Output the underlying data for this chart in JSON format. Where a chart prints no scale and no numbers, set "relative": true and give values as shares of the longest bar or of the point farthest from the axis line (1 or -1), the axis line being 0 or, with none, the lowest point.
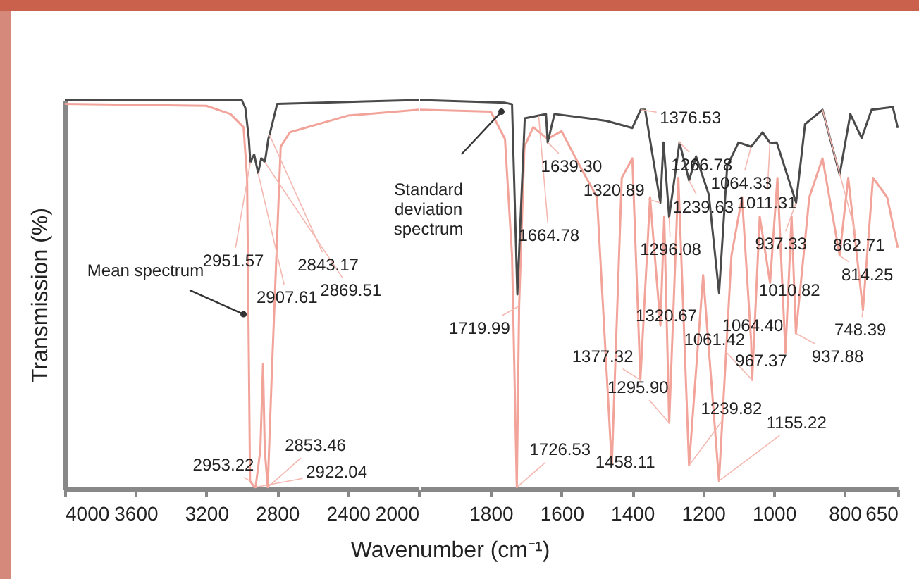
{
  "chart_data": [
    {
      "type": "line",
      "relative": true,
      "ylabel": "Transmission (%)",
      "xlim": [
        4000,
        2000
      ],
      "xticks": [
        4000,
        3600,
        3200,
        2800,
        2400,
        2000
      ],
      "grid": false,
      "marker": "none",
      "line_style": "solid",
      "series": [
        {
          "name": "Mean spectrum",
          "color": "#f2a49a",
          "x": [
            4000,
            3200,
            3064,
            2990,
            2970,
            2953.22,
            2930,
            2922.04,
            2895,
            2880,
            2870,
            2853.46,
            2830,
            2780,
            2728,
            2400,
            2000
          ],
          "values": [
            0.99,
            0.985,
            0.964,
            0.93,
            0.8,
            0.02,
            0.005,
            0.004,
            0.1,
            0.32,
            0.1,
            0.004,
            0.3,
            0.88,
            0.917,
            0.96,
            0.975
          ]
        },
        {
          "color": "#4a4a4a",
          "x": [
            4000,
            3000,
            2980,
            2960,
            2951.57,
            2930,
            2907.61,
            2890,
            2869.51,
            2850,
            2843.17,
            2800,
            2000
          ],
          "values": [
            1,
            1,
            0.98,
            0.9,
            0.84,
            0.86,
            0.812,
            0.85,
            0.84,
            0.9,
            0.91,
            0.99,
            1
          ]
        }
      ],
      "annotations": [
        {
          "text": "2951.57",
          "x": 2951.57,
          "y": 0.84
        },
        {
          "text": "2843.17",
          "x": 2843.17,
          "y": 0.91
        },
        {
          "text": "2907.61",
          "x": 2907.61,
          "y": 0.812
        },
        {
          "text": "2869.51",
          "x": 2869.51,
          "y": 0.84
        },
        {
          "text": "2953.22",
          "x": 2953.22,
          "y": 0.02
        },
        {
          "text": "2853.46",
          "x": 2853.46,
          "y": 0.004
        },
        {
          "text": "2922.04",
          "x": 2922.04,
          "y": 0.004
        }
      ]
    },
    {
      "type": "line",
      "relative": true,
      "xlabel": "Wavenumber (cm⁻¹)",
      "xlim": [
        2000,
        650
      ],
      "xticks": [
        1800,
        1600,
        1400,
        1200,
        1000,
        800,
        650
      ],
      "grid": false,
      "marker": "none",
      "line_style": "solid",
      "tick_labels": "x",
      "series": [
        {
          "color": "#f2a49a",
          "x": [
            2000,
            1800,
            1760,
            1740,
            1726.53,
            1719.99,
            1705,
            1680,
            1640,
            1600,
            1560,
            1500,
            1458.11,
            1430,
            1400,
            1377.32,
            1350,
            1320.67,
            1310,
            1295.9,
            1270,
            1239.82,
            1200,
            1155.22,
            1120,
            1090,
            1064.4,
            1061.42,
            1040,
            1010.82,
            990,
            967.37,
            950,
            937.88,
            900,
            862.71,
            814.25,
            790,
            748.39,
            720,
            680,
            650
          ],
          "values": [
            0.975,
            0.97,
            0.9,
            0.6,
            0.004,
            0.47,
            0.88,
            0.93,
            0.9,
            0.92,
            0.85,
            0.75,
            0.06,
            0.8,
            0.85,
            0.28,
            0.75,
            0.42,
            0.7,
            0.17,
            0.8,
            0.06,
            0.55,
            0.02,
            0.6,
            0.75,
            0.38,
            0.28,
            0.7,
            0.53,
            0.8,
            0.35,
            0.7,
            0.4,
            0.75,
            0.85,
            0.6,
            0.8,
            0.46,
            0.8,
            0.75,
            0.62
          ]
        },
        {
          "name": "Standard deviation spectrum",
          "color": "#4a4a4a",
          "x": [
            2000,
            1760,
            1740,
            1725,
            1704,
            1664.78,
            1644,
            1639.3,
            1620,
            1524,
            1472,
            1400,
            1376.53,
            1364,
            1320.89,
            1312,
            1296.08,
            1266.78,
            1239.63,
            1220,
            1184,
            1155,
            1132,
            1100,
            1064.33,
            1032,
            1011.31,
            992,
            937.33,
            912,
            862.71,
            814.25,
            784,
            752,
            724,
            664,
            650
          ],
          "values": [
            1,
            0.993,
            0.989,
            0.5,
            0.953,
            0.96,
            0.964,
            0.891,
            0.964,
            0.953,
            0.946,
            0.928,
            0.975,
            0.975,
            0.736,
            0.891,
            0.699,
            0.891,
            0.793,
            0.855,
            0.757,
            0.504,
            0.83,
            0.891,
            0.88,
            0.917,
            0.89,
            0.891,
            0.736,
            0.938,
            0.975,
            0.808,
            0.964,
            0.902,
            0.975,
            0.982,
            0.928
          ]
        }
      ],
      "annotations": [
        {
          "text": "1719.99",
          "x": 1719.99,
          "y": 0.47
        },
        {
          "text": "1726.53",
          "x": 1726.53,
          "y": 0.004
        },
        {
          "text": "1639.30",
          "x": 1639.3,
          "y": 0.891
        },
        {
          "text": "1664.78",
          "x": 1664.78,
          "y": 0.96
        },
        {
          "text": "1320.89",
          "x": 1320.89,
          "y": 0.736
        },
        {
          "text": "1376.53",
          "x": 1376.53,
          "y": 0.975
        },
        {
          "text": "1266.78",
          "x": 1266.78,
          "y": 0.891
        },
        {
          "text": "1064.33",
          "x": 1064.33,
          "y": 0.88
        },
        {
          "text": "1011.31",
          "x": 1011.31,
          "y": 0.89
        },
        {
          "text": "1239.63",
          "x": 1239.63,
          "y": 0.793
        },
        {
          "text": "1296.08",
          "x": 1296.08,
          "y": 0.699
        },
        {
          "text": "937.33",
          "x": 937.33,
          "y": 0.736
        },
        {
          "text": "862.71",
          "x": 862.71,
          "y": 0.975
        },
        {
          "text": "814.25",
          "x": 814.25,
          "y": 0.6
        },
        {
          "text": "1010.82",
          "x": 1010.82,
          "y": 0.53
        },
        {
          "text": "1320.67",
          "x": 1320.67,
          "y": 0.42
        },
        {
          "text": "1064.40",
          "x": 1064.4,
          "y": 0.38
        },
        {
          "text": "1061.42",
          "x": 1061.42,
          "y": 0.28
        },
        {
          "text": "748.39",
          "x": 748.39,
          "y": 0.46
        },
        {
          "text": "1377.32",
          "x": 1377.32,
          "y": 0.28
        },
        {
          "text": "967.37",
          "x": 967.37,
          "y": 0.35
        },
        {
          "text": "937.88",
          "x": 937.88,
          "y": 0.4
        },
        {
          "text": "1295.90",
          "x": 1295.9,
          "y": 0.17
        },
        {
          "text": "1239.82",
          "x": 1239.82,
          "y": 0.06
        },
        {
          "text": "1155.22",
          "x": 1155.22,
          "y": 0.02
        },
        {
          "text": "1458.11",
          "x": 1458.11,
          "y": 0.06
        }
      ]
    }
  ]
}
